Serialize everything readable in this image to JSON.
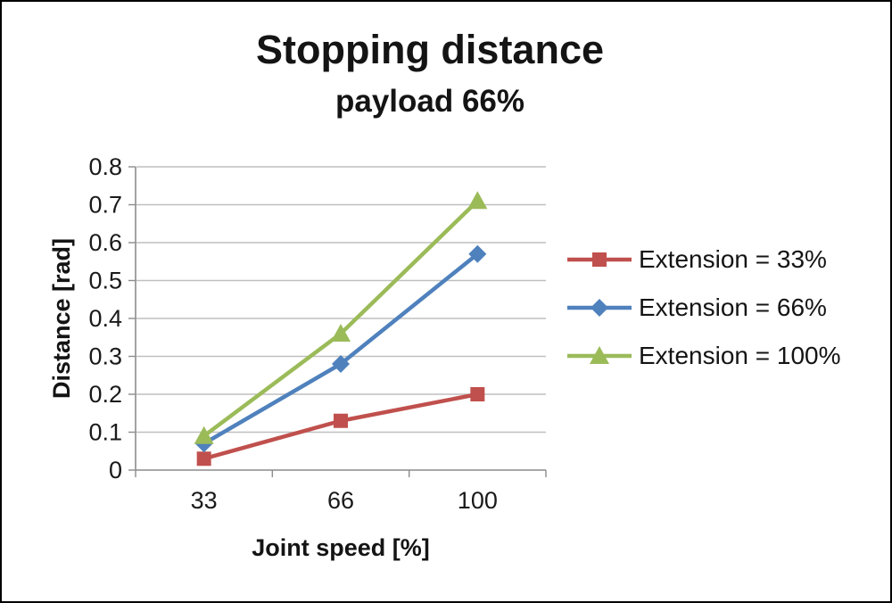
{
  "chart_data": {
    "type": "line",
    "title": "Stopping distance",
    "subtitle": "payload 66%",
    "xlabel": "Joint speed [%]",
    "ylabel": "Distance [rad]",
    "categories": [
      "33",
      "66",
      "100"
    ],
    "x": [
      33,
      66,
      100
    ],
    "series": [
      {
        "name": "Extension = 33%",
        "color": "#C0504D",
        "marker": "square",
        "values": [
          0.03,
          0.13,
          0.2
        ]
      },
      {
        "name": "Extension = 66%",
        "color": "#4F81BD",
        "marker": "diamond",
        "values": [
          0.07,
          0.28,
          0.57
        ]
      },
      {
        "name": "Extension = 100%",
        "color": "#9BBB59",
        "marker": "triangle",
        "values": [
          0.09,
          0.36,
          0.71
        ]
      }
    ],
    "ylim": [
      0,
      0.8
    ],
    "ytick_step": 0.1,
    "yticks": [
      "0",
      "0.1",
      "0.2",
      "0.3",
      "0.4",
      "0.5",
      "0.6",
      "0.7",
      "0.8"
    ],
    "grid": true,
    "legend_position": "right"
  },
  "colors": {
    "grid": "#BFBFBF",
    "axis": "#8C8C8C",
    "text": "#1A1A1A",
    "background": "#FFFFFF",
    "border": "#000000"
  }
}
